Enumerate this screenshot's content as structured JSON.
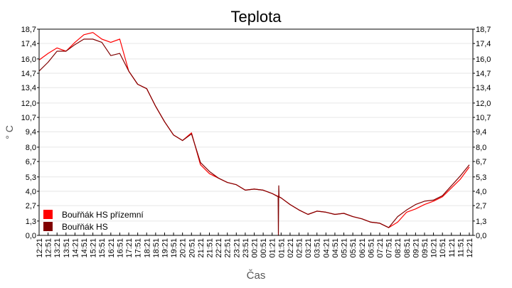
{
  "chart_data": {
    "type": "line",
    "title": "Teplota",
    "xlabel": "Čas",
    "ylabel": "° C",
    "ylim": [
      0,
      18.7
    ],
    "yticks": [
      "0,0",
      "1,3",
      "2,7",
      "4,0",
      "5,3",
      "6,7",
      "8,0",
      "9,4",
      "10,7",
      "12,0",
      "13,4",
      "14,7",
      "16,0",
      "17,4",
      "18,7"
    ],
    "xticks": [
      "12:21",
      "12:51",
      "13:21",
      "13:51",
      "14:21",
      "14:51",
      "15:21",
      "15:51",
      "16:21",
      "16:51",
      "17:21",
      "17:51",
      "18:21",
      "18:51",
      "19:21",
      "19:51",
      "20:21",
      "20:51",
      "21:21",
      "21:51",
      "22:21",
      "22:51",
      "23:21",
      "23:51",
      "00:21",
      "00:51",
      "01:21",
      "01:51",
      "02:21",
      "02:51",
      "03:21",
      "03:51",
      "04:21",
      "04:51",
      "05:21",
      "05:51",
      "06:21",
      "06:51",
      "07:21",
      "07:51",
      "08:21",
      "08:51",
      "09:21",
      "09:51",
      "10:21",
      "10:51",
      "11:21",
      "11:51",
      "12:21"
    ],
    "grid": true,
    "legend_position": "bottom-left",
    "series": [
      {
        "name": "Bouřňák HS přízemní",
        "color": "#ff0000",
        "points": [
          [
            "12:21",
            15.9
          ],
          [
            "12:51",
            16.5
          ],
          [
            "13:21",
            17.0
          ],
          [
            "13:51",
            16.7
          ],
          [
            "14:21",
            17.5
          ],
          [
            "14:51",
            18.2
          ],
          [
            "15:21",
            18.4
          ],
          [
            "15:51",
            17.8
          ],
          [
            "16:21",
            17.5
          ],
          [
            "16:51",
            17.8
          ],
          [
            "17:21",
            14.9
          ],
          [
            "17:51",
            13.7
          ],
          [
            "18:21",
            13.3
          ],
          [
            "18:51",
            11.7
          ],
          [
            "19:21",
            10.3
          ],
          [
            "19:51",
            9.1
          ],
          [
            "20:21",
            8.6
          ],
          [
            "20:51",
            9.3
          ],
          [
            "21:21",
            6.4
          ],
          [
            "21:51",
            5.6
          ],
          [
            "22:21",
            5.2
          ],
          [
            "22:51",
            4.8
          ],
          [
            "23:21",
            4.6
          ],
          [
            "23:51",
            4.1
          ],
          [
            "00:21",
            4.2
          ],
          [
            "00:51",
            4.1
          ],
          [
            "01:21",
            3.8
          ],
          [
            "01:51",
            3.4
          ],
          [
            "02:21",
            2.8
          ],
          [
            "02:51",
            2.3
          ],
          [
            "03:21",
            1.9
          ],
          [
            "03:51",
            2.2
          ],
          [
            "04:21",
            2.1
          ],
          [
            "04:51",
            1.9
          ],
          [
            "05:21",
            2.0
          ],
          [
            "05:51",
            1.7
          ],
          [
            "06:21",
            1.5
          ],
          [
            "06:51",
            1.2
          ],
          [
            "07:21",
            1.1
          ],
          [
            "07:51",
            0.7
          ],
          [
            "08:21",
            1.2
          ],
          [
            "08:51",
            2.1
          ],
          [
            "09:21",
            2.4
          ],
          [
            "09:51",
            2.8
          ],
          [
            "10:21",
            3.1
          ],
          [
            "10:51",
            3.5
          ],
          [
            "11:21",
            4.3
          ],
          [
            "11:51",
            5.1
          ],
          [
            "12:21",
            6.2
          ]
        ]
      },
      {
        "name": "Bouřňák HS",
        "color": "#800000",
        "points": [
          [
            "12:21",
            14.9
          ],
          [
            "12:51",
            15.7
          ],
          [
            "13:21",
            16.7
          ],
          [
            "13:51",
            16.7
          ],
          [
            "14:21",
            17.3
          ],
          [
            "14:51",
            17.8
          ],
          [
            "15:21",
            17.8
          ],
          [
            "15:51",
            17.5
          ],
          [
            "16:21",
            16.3
          ],
          [
            "16:51",
            16.5
          ],
          [
            "17:21",
            14.9
          ],
          [
            "17:51",
            13.7
          ],
          [
            "18:21",
            13.3
          ],
          [
            "18:51",
            11.7
          ],
          [
            "19:21",
            10.3
          ],
          [
            "19:51",
            9.1
          ],
          [
            "20:21",
            8.6
          ],
          [
            "20:51",
            9.2
          ],
          [
            "21:21",
            6.6
          ],
          [
            "21:51",
            5.8
          ],
          [
            "22:21",
            5.2
          ],
          [
            "22:51",
            4.8
          ],
          [
            "23:21",
            4.6
          ],
          [
            "23:51",
            4.1
          ],
          [
            "00:21",
            4.2
          ],
          [
            "00:51",
            4.1
          ],
          [
            "01:21",
            3.8
          ],
          [
            "01:41",
            3.5
          ],
          [
            "01:42",
            0.0
          ],
          [
            "01:43",
            4.5
          ],
          [
            "01:44",
            3.5
          ],
          [
            "01:51",
            3.4
          ],
          [
            "02:21",
            2.8
          ],
          [
            "02:51",
            2.3
          ],
          [
            "03:21",
            1.9
          ],
          [
            "03:51",
            2.2
          ],
          [
            "04:21",
            2.1
          ],
          [
            "04:51",
            1.9
          ],
          [
            "05:21",
            2.0
          ],
          [
            "05:51",
            1.7
          ],
          [
            "06:21",
            1.5
          ],
          [
            "06:51",
            1.2
          ],
          [
            "07:21",
            1.1
          ],
          [
            "07:51",
            0.7
          ],
          [
            "08:21",
            1.7
          ],
          [
            "08:51",
            2.3
          ],
          [
            "09:21",
            2.8
          ],
          [
            "09:51",
            3.1
          ],
          [
            "10:21",
            3.2
          ],
          [
            "10:51",
            3.6
          ],
          [
            "11:21",
            4.5
          ],
          [
            "11:51",
            5.4
          ],
          [
            "12:21",
            6.4
          ]
        ]
      }
    ]
  }
}
